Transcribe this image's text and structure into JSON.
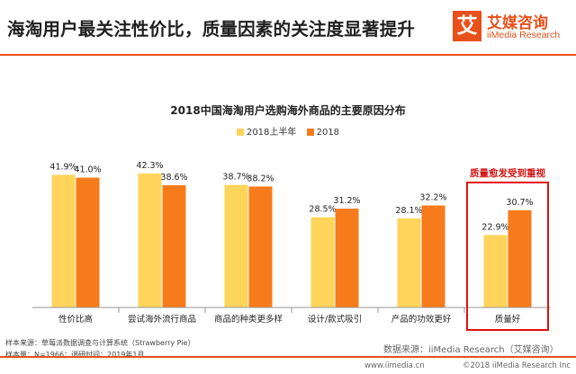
{
  "header": {
    "headline": "海淘用户最关注性价比，质量因素的关注度显著提升",
    "logo_mark": "艾",
    "logo_cn": "艾媒咨询",
    "logo_en": "iiMedia Research"
  },
  "colors": {
    "accent": "#e8501a",
    "series_first_half": "#ffd45a",
    "series_2018": "#f77b1a",
    "callout": "#e01010"
  },
  "callout": "质量愈发受到重视",
  "footnotes": {
    "sample_source": "样本来源：草莓派数据调查与计算系统（Strawberry Pie）",
    "sample_size": "样本量：N=1966；调研时间：2019年1月"
  },
  "source": "数据来源：iiMedia Research（艾媒咨询）",
  "url": "www.iimedia.cn",
  "copyright": "©2018  iiMedia Research  Inc",
  "chart_data": {
    "type": "bar",
    "title": "2018中国海淘用户选购海外商品的主要原因分布",
    "categories": [
      "性价比高",
      "尝试海外流行商品",
      "商品的种类更多样",
      "设计/款式吸引",
      "产品的功效更好",
      "质量好"
    ],
    "series": [
      {
        "name": "2018上半年",
        "values": [
          41.9,
          42.3,
          38.7,
          28.5,
          28.1,
          22.9
        ]
      },
      {
        "name": "2018",
        "values": [
          41.0,
          38.6,
          38.2,
          31.2,
          32.2,
          30.7
        ]
      }
    ],
    "value_suffix": "%",
    "legend_position": "top",
    "grid": false,
    "ylim": [
      0,
      46
    ]
  }
}
